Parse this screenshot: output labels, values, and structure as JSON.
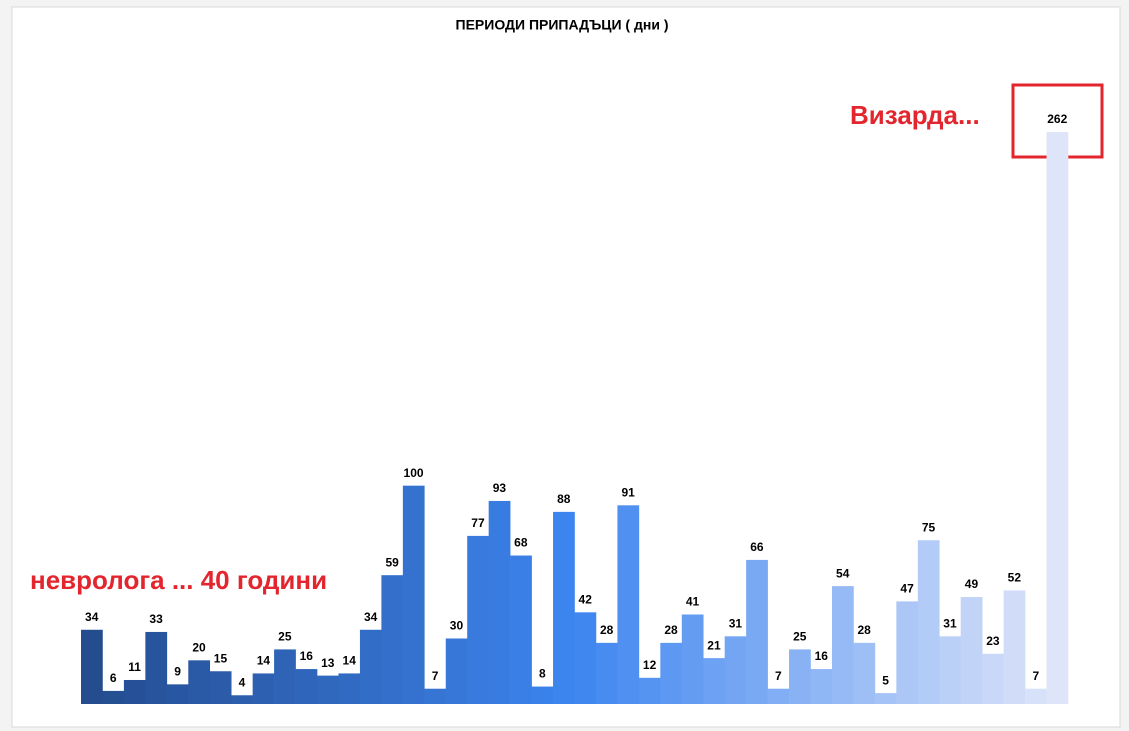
{
  "chart_data": {
    "type": "bar",
    "title": "ПЕРИОДИ ПРИПАДЪЦИ  ( дни )",
    "annotations": [
      "Визарда...",
      "невролога ... 40 години"
    ],
    "annotation_color": "#e3262e",
    "values": [
      34,
      6,
      11,
      33,
      9,
      20,
      15,
      4,
      14,
      25,
      16,
      13,
      14,
      34,
      59,
      100,
      7,
      30,
      77,
      93,
      68,
      8,
      88,
      42,
      28,
      91,
      12,
      28,
      41,
      21,
      31,
      66,
      7,
      25,
      16,
      54,
      28,
      5,
      47,
      75,
      31,
      49,
      23,
      52,
      7,
      262
    ],
    "color_stops": [
      "#244c8f",
      "#3d85f0",
      "#dee5f9"
    ],
    "ylim": [
      0,
      300
    ]
  }
}
